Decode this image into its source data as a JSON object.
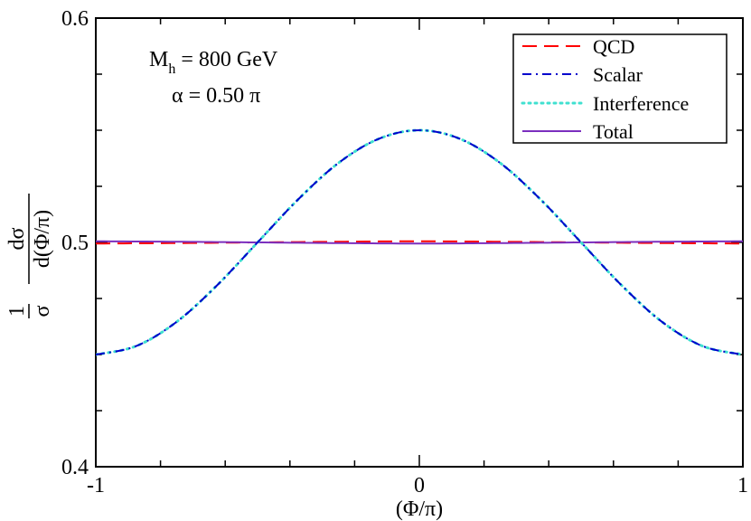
{
  "chart_data": {
    "type": "line",
    "xlabel": "(Φ/π)",
    "ylabel": {
      "prefix_num": "1",
      "prefix_den": "σ",
      "frac_num": "dσ",
      "frac_den": "d(Φ/π)"
    },
    "xlim": [
      -1,
      1
    ],
    "ylim": [
      0.4,
      0.6
    ],
    "x_ticks": [
      "-1",
      "0",
      "1"
    ],
    "y_ticks": [
      "0.4",
      "0.5",
      "0.6"
    ],
    "annotations": {
      "mass": {
        "symbol": "M",
        "subscript": "h",
        "value": " = 800 GeV"
      },
      "alpha": "α = 0.50 π"
    },
    "legend_position": "top-right",
    "series": [
      {
        "name": "QCD",
        "color": "#ff0000",
        "style": "dashed",
        "x": [
          -1,
          -0.75,
          -0.5,
          -0.25,
          0,
          0.25,
          0.5,
          0.75,
          1
        ],
        "y": [
          0.4995,
          0.4997,
          0.5,
          0.5003,
          0.5005,
          0.5003,
          0.5,
          0.4997,
          0.4995
        ]
      },
      {
        "name": "Scalar",
        "color": "#0000cc",
        "style": "dashdot",
        "x": [
          -1,
          -0.875,
          -0.75,
          -0.625,
          -0.5,
          -0.375,
          -0.25,
          -0.125,
          0,
          0.125,
          0.25,
          0.375,
          0.5,
          0.625,
          0.75,
          0.875,
          1
        ],
        "y": [
          0.45,
          0.4538,
          0.4646,
          0.4809,
          0.5,
          0.5191,
          0.5354,
          0.5462,
          0.55,
          0.5462,
          0.5354,
          0.5191,
          0.5,
          0.4809,
          0.4646,
          0.4538,
          0.45
        ]
      },
      {
        "name": "Interference",
        "color": "#40e0d0",
        "style": "dotted",
        "x": [
          -1,
          -0.875,
          -0.75,
          -0.625,
          -0.5,
          -0.375,
          -0.25,
          -0.125,
          0,
          0.125,
          0.25,
          0.375,
          0.5,
          0.625,
          0.75,
          0.875,
          1
        ],
        "y": [
          0.45,
          0.4538,
          0.4646,
          0.4809,
          0.5,
          0.5191,
          0.5354,
          0.5462,
          0.55,
          0.5462,
          0.5354,
          0.5191,
          0.5,
          0.4809,
          0.4646,
          0.4538,
          0.45
        ]
      },
      {
        "name": "Total",
        "color": "#7b2fbe",
        "style": "solid",
        "x": [
          -1,
          -0.75,
          -0.5,
          -0.25,
          0,
          0.25,
          0.5,
          0.75,
          1
        ],
        "y": [
          0.5005,
          0.5003,
          0.5,
          0.4997,
          0.4995,
          0.4997,
          0.5,
          0.5003,
          0.5005
        ]
      }
    ]
  }
}
